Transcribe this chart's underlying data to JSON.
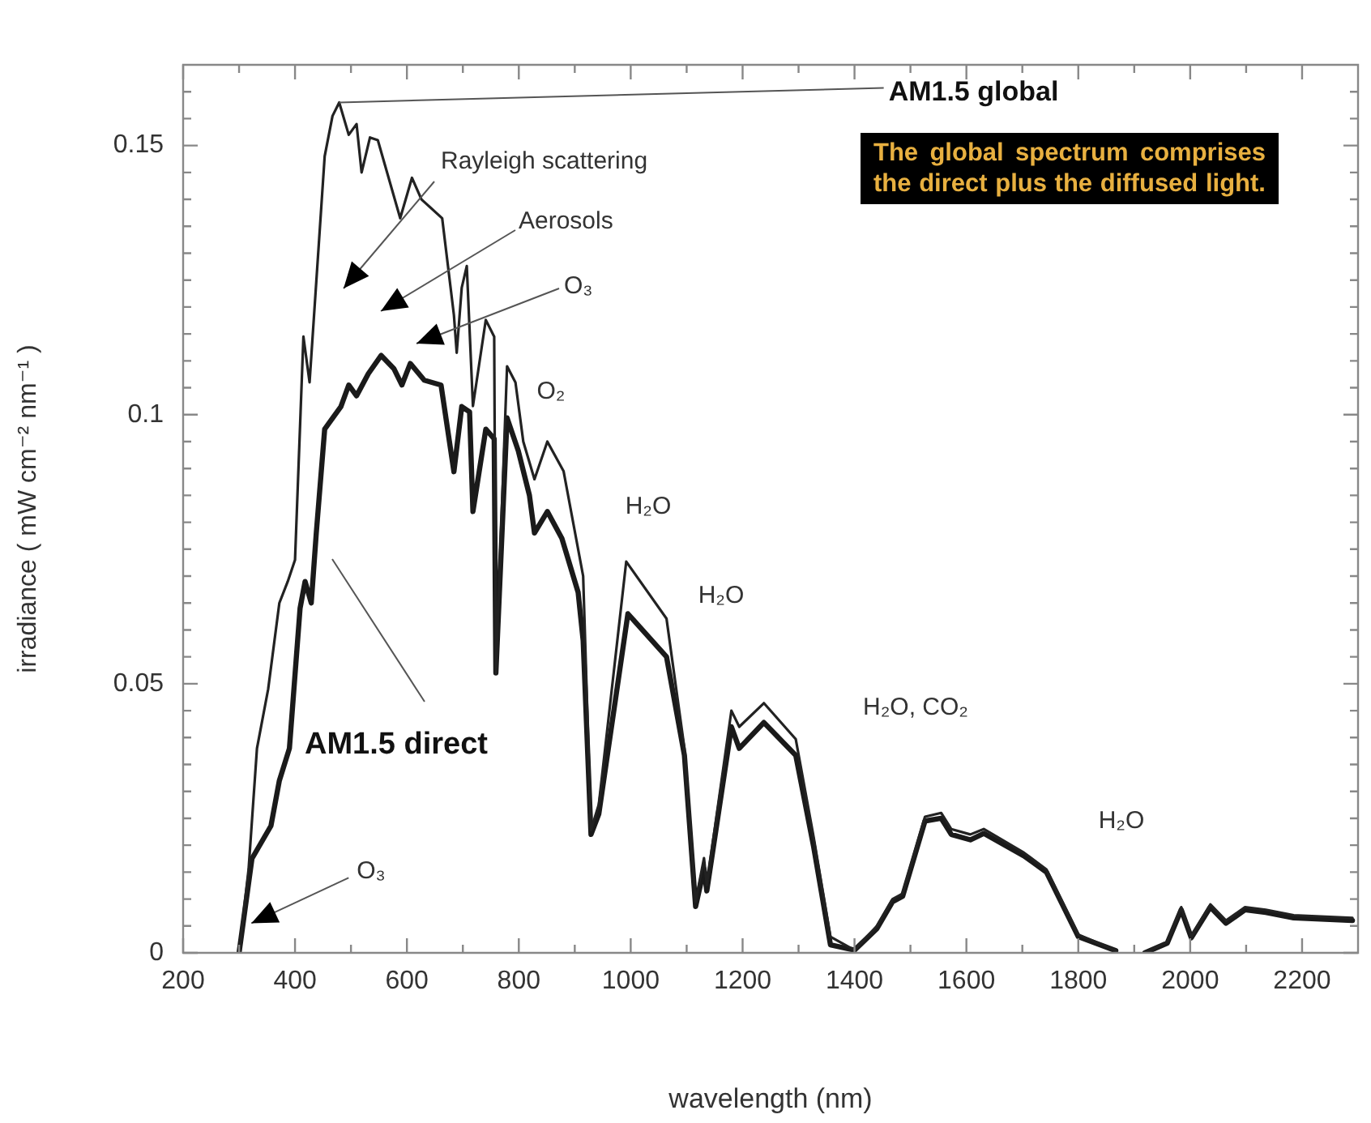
{
  "chart_data": {
    "type": "line",
    "xlabel": "wavelength (nm)",
    "ylabel": "irradiance ( mW cm⁻² nm⁻¹ )",
    "xlim": [
      200,
      2300
    ],
    "ylim": [
      0,
      0.165
    ],
    "xticks": [
      200,
      {
        "value": 300,
        "label": null
      },
      400,
      {
        "value": 500,
        "label": null
      },
      600,
      {
        "value": 700,
        "label": null
      },
      800,
      {
        "value": 900,
        "label": null
      },
      1000,
      {
        "value": 1100,
        "label": null
      },
      1200,
      {
        "value": 1300,
        "label": null
      },
      1400,
      {
        "value": 1500,
        "label": null
      },
      1600,
      {
        "value": 1700,
        "label": null
      },
      1800,
      {
        "value": 1900,
        "label": null
      },
      2000,
      {
        "value": 2100,
        "label": null
      },
      2200
    ],
    "yticks": [
      0,
      {
        "value": 0.005,
        "label": null
      },
      {
        "value": 0.01,
        "label": null
      },
      {
        "value": 0.015,
        "label": null
      },
      {
        "value": 0.02,
        "label": null
      },
      {
        "value": 0.025,
        "label": null
      },
      {
        "value": 0.03,
        "label": null
      },
      {
        "value": 0.035,
        "label": null
      },
      {
        "value": 0.04,
        "label": null
      },
      {
        "value": 0.045,
        "label": null
      },
      0.05,
      {
        "value": 0.055,
        "label": null
      },
      {
        "value": 0.06,
        "label": null
      },
      {
        "value": 0.065,
        "label": null
      },
      {
        "value": 0.07,
        "label": null
      },
      {
        "value": 0.075,
        "label": null
      },
      {
        "value": 0.08,
        "label": null
      },
      {
        "value": 0.085,
        "label": null
      },
      {
        "value": 0.09,
        "label": null
      },
      {
        "value": 0.095,
        "label": null
      },
      0.1,
      {
        "value": 0.105,
        "label": null
      },
      {
        "value": 0.11,
        "label": null
      },
      {
        "value": 0.115,
        "label": null
      },
      {
        "value": 0.12,
        "label": null
      },
      {
        "value": 0.125,
        "label": null
      },
      {
        "value": 0.13,
        "label": null
      },
      {
        "value": 0.135,
        "label": null
      },
      {
        "value": 0.14,
        "label": null
      },
      {
        "value": 0.145,
        "label": null
      },
      0.15,
      {
        "value": 0.155,
        "label": null
      },
      {
        "value": 0.16,
        "label": null
      }
    ],
    "legend": false,
    "marker": "none",
    "line_style": "solid",
    "series": [
      {
        "color": "#222222",
        "x": [
          300,
          317,
          332,
          352,
          372,
          387,
          400,
          415,
          426,
          453,
          467,
          479,
          496,
          510,
          519,
          534,
          548,
          588,
          609,
          626,
          663,
          684,
          689,
          698,
          707,
          718,
          741,
          756,
          759,
          779,
          794,
          808,
          828,
          851,
          880,
          915,
          929,
          943,
          992,
          1064,
          1096,
          1116,
          1131,
          1136,
          1180,
          1194,
          1238,
          1295,
          1327,
          1357,
          1400,
          1440,
          1468,
          1486,
          1526,
          1555,
          1573,
          1607,
          1631,
          1703,
          1743,
          1800,
          1867,
          1890,
          1919,
          1959,
          1984,
          2002,
          2036,
          2064,
          2098,
          2135,
          2185,
          2290
        ],
        "values": [
          0,
          0.0155,
          0.038,
          0.049,
          0.065,
          0.069,
          0.073,
          0.1145,
          0.106,
          0.148,
          0.1555,
          0.158,
          0.152,
          0.154,
          0.145,
          0.1515,
          0.151,
          0.1365,
          0.144,
          0.14,
          0.1365,
          0.1185,
          0.1115,
          0.1236,
          0.1276,
          0.1016,
          0.1176,
          0.1145,
          0.052,
          0.109,
          0.106,
          0.095,
          0.088,
          0.095,
          0.0895,
          0.07,
          0.0228,
          0.0276,
          0.0727,
          0.0621,
          0.038,
          0.0095,
          0.0176,
          0.0126,
          0.045,
          0.042,
          0.0464,
          0.0397,
          0.0215,
          0.003,
          0.0005,
          0.005,
          0.01,
          0.011,
          0.0253,
          0.026,
          0.023,
          0.022,
          0.023,
          0.0186,
          0.0155,
          0.0034,
          0.0004,
          null,
          0,
          0.002,
          0.0085,
          0.003,
          0.009,
          0.006,
          0.0085,
          0.008,
          0.007,
          0.0065
        ]
      },
      {
        "color": "#1a1a1a",
        "x": [
          300,
          323,
          357,
          372,
          390,
          409,
          418,
          429,
          438,
          453,
          482,
          496,
          510,
          531,
          554,
          577,
          591,
          606,
          631,
          661,
          684,
          698,
          712,
          718,
          741,
          756,
          759,
          779,
          799,
          819,
          828,
          851,
          877,
          906,
          915,
          929,
          943,
          995,
          1064,
          1096,
          1116,
          1131,
          1136,
          1180,
          1194,
          1238,
          1295,
          1327,
          1357,
          1400,
          1440,
          1468,
          1486,
          1526,
          1555,
          1573,
          1607,
          1631,
          1703,
          1743,
          1800,
          1867,
          1890,
          1919,
          1959,
          1984,
          2002,
          2036,
          2064,
          2098,
          2135,
          2185,
          2290
        ],
        "values": [
          0,
          0.0175,
          0.0236,
          0.032,
          0.038,
          0.064,
          0.069,
          0.065,
          0.078,
          0.0973,
          0.1015,
          0.1055,
          0.1035,
          0.1076,
          0.111,
          0.1085,
          0.1055,
          0.1095,
          0.1064,
          0.1055,
          0.0894,
          0.1015,
          0.1005,
          0.082,
          0.0973,
          0.0955,
          0.052,
          0.0994,
          0.0933,
          0.085,
          0.078,
          0.082,
          0.077,
          0.067,
          0.058,
          0.022,
          0.0258,
          0.063,
          0.055,
          0.0367,
          0.0086,
          0.0156,
          0.0115,
          0.042,
          0.038,
          0.0428,
          0.0367,
          0.0197,
          0.0015,
          0.0005,
          0.0045,
          0.0095,
          0.0105,
          0.0245,
          0.025,
          0.022,
          0.021,
          0.0222,
          0.018,
          0.015,
          0.003,
          0.0004,
          null,
          0,
          0.0018,
          0.008,
          0.0028,
          0.0085,
          0.0055,
          0.008,
          0.0075,
          0.0065,
          0.006
        ]
      }
    ],
    "annotations": [
      {
        "text": "AM1.5 global",
        "x": 479,
        "y": 0.158
      },
      "The global spectrum comprises the direct plus the diffused light.",
      "Rayleigh scattering",
      "Aerosols",
      "O₃",
      "O₂",
      "H₂O",
      "H₂O",
      "H₂O, CO₂",
      "H₂O",
      "AM1.5 direct",
      {
        "text": "O₃",
        "x": 322,
        "y": 0.0055
      }
    ]
  }
}
